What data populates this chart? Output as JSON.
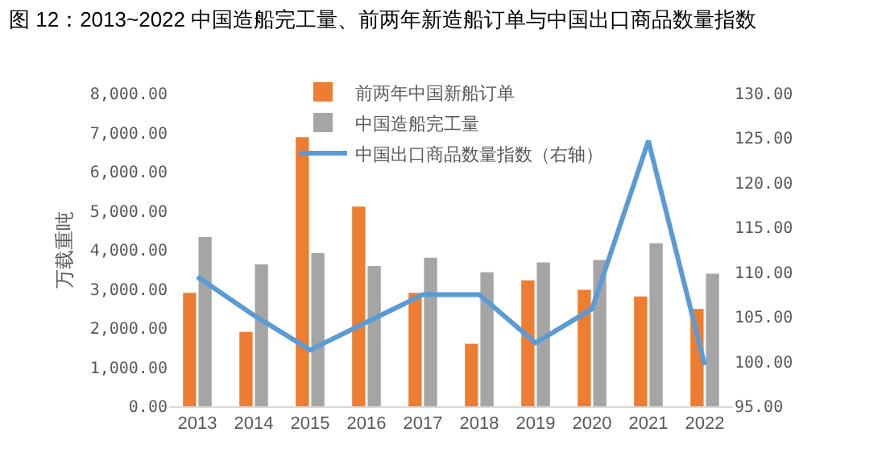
{
  "chart_data": {
    "type": "bar",
    "title": "图 12：2013~2022 中国造船完工量、前两年新造船订单与中国出口商品数量指数",
    "ylabel": "万载重吨",
    "categories": [
      "2013",
      "2014",
      "2015",
      "2016",
      "2017",
      "2018",
      "2019",
      "2020",
      "2021",
      "2022"
    ],
    "series": [
      {
        "name": "前两年中国新船订单",
        "color": "#ed7d31",
        "values": [
          2900,
          1900,
          6880,
          5110,
          2900,
          1600,
          3220,
          2980,
          2810,
          2490
        ]
      },
      {
        "name": "中国造船完工量",
        "color": "#a5a5a5",
        "values": [
          4330,
          3630,
          3920,
          3590,
          3800,
          3430,
          3680,
          3740,
          4170,
          3390
        ]
      },
      {
        "name": "中国出口商品数量指数（右轴）",
        "type": "line",
        "axis": "y2",
        "color": "#5b9bd5",
        "values": [
          109.5,
          105.2,
          101.3,
          104.4,
          107.5,
          107.5,
          102.1,
          105.9,
          124.7,
          99.6
        ]
      }
    ],
    "ylim": [
      0,
      8000
    ],
    "yticks": [
      {
        "value": 0,
        "label": "0.00"
      },
      {
        "value": 1000,
        "label": "1,000.00"
      },
      {
        "value": 2000,
        "label": "2,000.00"
      },
      {
        "value": 3000,
        "label": "3,000.00"
      },
      {
        "value": 4000,
        "label": "4,000.00"
      },
      {
        "value": 5000,
        "label": "5,000.00"
      },
      {
        "value": 6000,
        "label": "6,000.00"
      },
      {
        "value": 7000,
        "label": "7,000.00"
      },
      {
        "value": 8000,
        "label": "8,000.00"
      }
    ],
    "y2lim": [
      95,
      130
    ],
    "y2ticks": [
      {
        "value": 95,
        "label": "95.00"
      },
      {
        "value": 100,
        "label": "100.00"
      },
      {
        "value": 105,
        "label": "105.00"
      },
      {
        "value": 110,
        "label": "110.00"
      },
      {
        "value": 115,
        "label": "115.00"
      },
      {
        "value": 120,
        "label": "120.00"
      },
      {
        "value": 125,
        "label": "125.00"
      },
      {
        "value": 130,
        "label": "130.00"
      }
    ],
    "grid": false,
    "legend": "top",
    "marker": "none",
    "line_style": "solid"
  }
}
